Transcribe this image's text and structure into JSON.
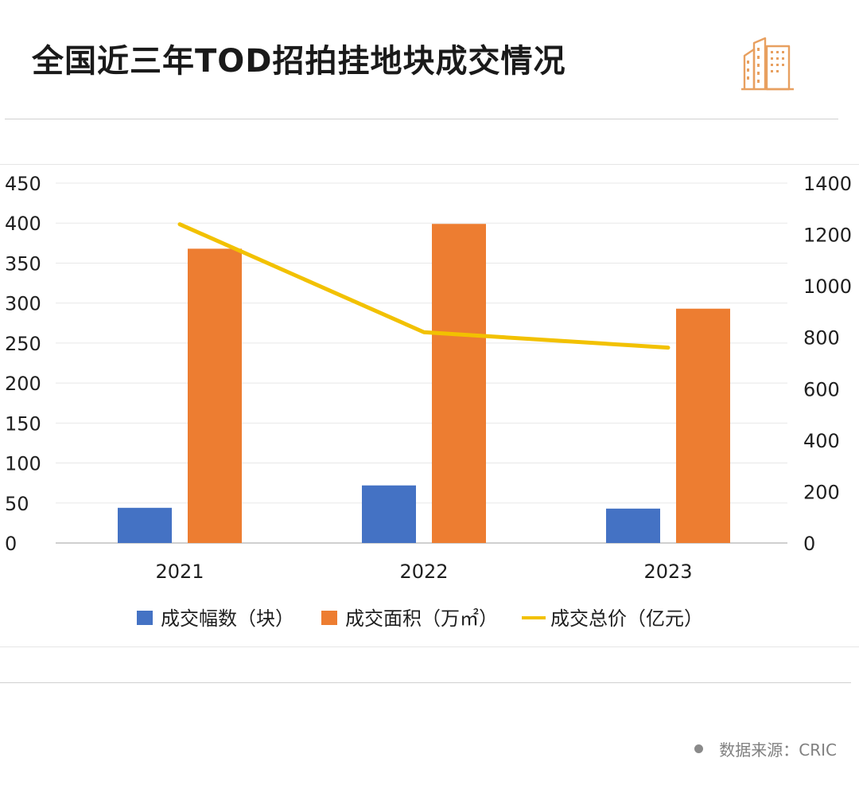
{
  "header": {
    "title": "全国近三年TOD招拍挂地块成交情况",
    "icon": "buildings-icon",
    "icon_color": "#E8A060"
  },
  "chart_data": {
    "type": "bar",
    "categories": [
      "2021",
      "2022",
      "2023"
    ],
    "series": [
      {
        "name": "成交幅数（块）",
        "type": "bar",
        "axis": "left",
        "color": "#4472C4",
        "values": [
          44,
          72,
          43
        ]
      },
      {
        "name": "成交面积（万㎡）",
        "type": "bar",
        "axis": "left",
        "color": "#ED7D31",
        "values": [
          368,
          399,
          293
        ]
      },
      {
        "name": "成交总价（亿元）",
        "type": "line",
        "axis": "right",
        "color": "#F2C100",
        "values": [
          1240,
          820,
          760
        ]
      }
    ],
    "y_left": {
      "min": 0,
      "max": 450,
      "step": 50,
      "ticks": [
        "0",
        "50",
        "100",
        "150",
        "200",
        "250",
        "300",
        "350",
        "400",
        "450"
      ]
    },
    "y_right": {
      "min": 0,
      "max": 1400,
      "step": 200,
      "ticks": [
        "0",
        "200",
        "400",
        "600",
        "800",
        "1000",
        "1200",
        "1400"
      ]
    },
    "grid": true,
    "legend_position": "bottom"
  },
  "footer": {
    "source": "数据来源：CRIC"
  }
}
